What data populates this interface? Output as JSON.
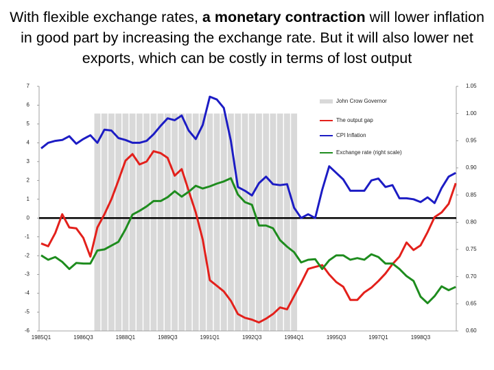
{
  "chart_data": {
    "type": "line",
    "title_prefix": "With flexible exchange rates, ",
    "title_bold": "a monetary contraction",
    "title_suffix": " will lower inflation in good part by increasing the exchange rate. But it will also lower net exports, which can be costly in terms of lost output",
    "categories": [
      "1985Q1",
      null,
      null,
      null,
      null,
      null,
      "1986Q3",
      null,
      null,
      null,
      null,
      null,
      "1988Q1",
      null,
      null,
      null,
      null,
      null,
      "1989Q3",
      null,
      null,
      null,
      null,
      null,
      "1991Q1",
      null,
      null,
      null,
      null,
      null,
      "1992Q3",
      null,
      null,
      null,
      null,
      null,
      "1994Q1",
      null,
      null,
      null,
      null,
      null,
      "1995Q3",
      null,
      null,
      null,
      null,
      null,
      "1997Q1",
      null,
      null,
      null,
      null,
      null,
      "1998Q3",
      null,
      null,
      null,
      null,
      null
    ],
    "ylim": [
      -6,
      7
    ],
    "yticks": [
      -6,
      -5,
      -4,
      -3,
      -2,
      -1,
      0,
      1,
      2,
      3,
      4,
      5,
      6,
      7
    ],
    "y2lim": [
      0.6,
      1.05
    ],
    "y2ticks": [
      {
        "value": 0.6,
        "label": "0.60"
      },
      0.65,
      {
        "value": 0.7,
        "label": "0.70"
      },
      0.75,
      {
        "value": 0.8,
        "label": "0.80"
      },
      0.85,
      {
        "value": 0.9,
        "label": "0.90"
      },
      0.95,
      {
        "value": 1.0,
        "label": "1.00"
      },
      1.05
    ],
    "legend": "upper-right",
    "series": [
      {
        "name": "John Crow Governor",
        "type": "bar",
        "axis": "y2",
        "color": "#d9d9d9",
        "values": [
          null,
          null,
          null,
          null,
          null,
          null,
          null,
          null,
          1,
          1,
          1,
          1,
          1,
          1,
          1,
          1,
          1,
          1,
          1,
          1,
          1,
          1,
          1,
          1,
          1,
          1,
          1,
          1,
          1,
          1,
          1,
          1,
          1,
          1,
          1,
          1,
          1,
          null,
          null,
          null,
          null,
          null,
          null,
          null,
          null,
          null,
          null,
          null,
          null,
          null,
          null,
          null,
          null,
          null,
          null,
          null,
          null,
          null,
          null,
          null
        ]
      },
      {
        "name": "The output gap",
        "type": "line",
        "color": "#e3201b",
        "values": [
          -1.35,
          -1.5,
          -0.8,
          0.2,
          -0.5,
          -0.55,
          -1.05,
          -2.05,
          -0.5,
          0.2,
          1.0,
          2.0,
          3.05,
          3.4,
          2.85,
          3.0,
          3.55,
          3.45,
          3.2,
          2.25,
          2.6,
          1.45,
          0.3,
          -1.15,
          -3.3,
          -3.6,
          -3.9,
          -4.4,
          -5.1,
          -5.3,
          -5.4,
          -5.55,
          -5.35,
          -5.1,
          -4.75,
          -4.85,
          -4.15,
          -3.45,
          -2.7,
          -2.6,
          -2.5,
          -3.0,
          -3.4,
          -3.65,
          -4.35,
          -4.35,
          -3.95,
          -3.7,
          -3.35,
          -2.95,
          -2.45,
          -2.05,
          -1.3,
          -1.7,
          -1.45,
          -0.75,
          0.05,
          0.3,
          0.75,
          1.85
        ]
      },
      {
        "name": "CPI Inflation",
        "type": "line",
        "color": "#1c1cc4",
        "values": [
          3.7,
          4.0,
          4.1,
          4.15,
          4.35,
          3.95,
          4.2,
          4.4,
          4.0,
          4.7,
          4.65,
          4.25,
          4.15,
          4.0,
          4.0,
          4.1,
          4.45,
          4.9,
          5.3,
          5.2,
          5.45,
          4.65,
          4.2,
          4.95,
          6.45,
          6.3,
          5.85,
          4.1,
          1.65,
          1.45,
          1.2,
          1.85,
          2.2,
          1.8,
          1.75,
          1.8,
          0.55,
          0.0,
          0.2,
          0.0,
          1.5,
          2.75,
          2.4,
          2.05,
          1.45,
          1.45,
          1.45,
          2.0,
          2.1,
          1.65,
          1.75,
          1.05,
          1.05,
          1.0,
          0.85,
          1.1,
          0.8,
          1.6,
          2.2,
          2.4
        ]
      },
      {
        "name": "Exchange rate (right scale)",
        "type": "line",
        "axis": "y2",
        "color": "#1e8c1e",
        "values": [
          0.739,
          0.731,
          0.736,
          0.727,
          0.714,
          0.725,
          0.724,
          0.724,
          0.748,
          0.75,
          0.757,
          0.764,
          0.787,
          0.814,
          0.821,
          0.829,
          0.839,
          0.839,
          0.846,
          0.857,
          0.847,
          0.856,
          0.867,
          0.862,
          0.866,
          0.871,
          0.875,
          0.881,
          0.851,
          0.837,
          0.832,
          0.794,
          0.794,
          0.789,
          0.767,
          0.755,
          0.745,
          0.726,
          0.731,
          0.732,
          0.714,
          0.73,
          0.739,
          0.739,
          0.731,
          0.734,
          0.731,
          0.741,
          0.736,
          0.724,
          0.724,
          0.714,
          0.701,
          0.692,
          0.663,
          0.651,
          0.664,
          0.682,
          0.675,
          0.681
        ]
      }
    ]
  }
}
